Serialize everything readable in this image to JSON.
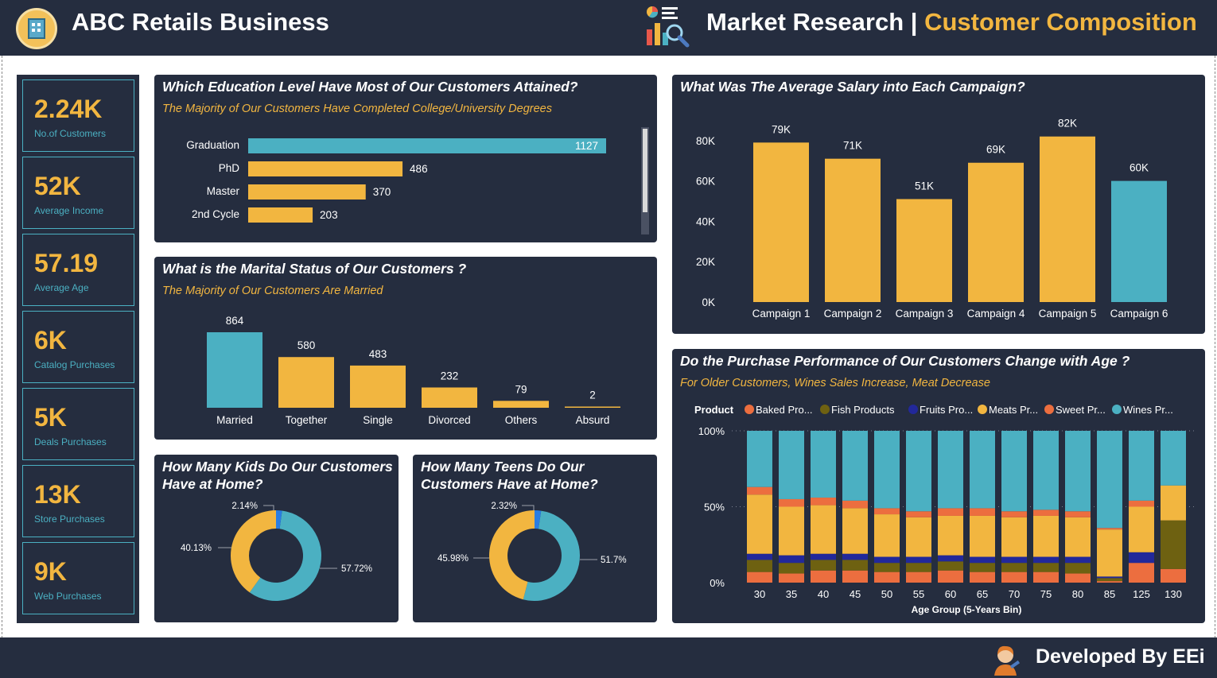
{
  "header": {
    "app_title": "ABC Retails Business",
    "page_title_main": "Market Research |",
    "page_title_accent": "Customer Composition",
    "colors": {
      "background": "#252d3f",
      "accent": "#f2b640",
      "teal": "#4bb0c2"
    }
  },
  "footer": {
    "developer": "Developed By EEi"
  },
  "kpis": [
    {
      "value": "2.24K",
      "label": "No.of Customers"
    },
    {
      "value": "52K",
      "label": "Average Income"
    },
    {
      "value": "57.19",
      "label": "Average Age"
    },
    {
      "value": "6K",
      "label": "Catalog Purchases"
    },
    {
      "value": "5K",
      "label": "Deals Purchases"
    },
    {
      "value": "13K",
      "label": "Store Purchases"
    },
    {
      "value": "9K",
      "label": "Web Purchases"
    }
  ],
  "education": {
    "title": "Which Education Level Have Most of Our Customers Attained?",
    "subtitle": "The Majority of Our Customers Have Completed College/University Degrees"
  },
  "marital": {
    "title": "What is the Marital Status of Our Customers ?",
    "subtitle": "The Majority of Our Customers Are Married"
  },
  "kids": {
    "title_line1": "How Many Kids Do Our Customers",
    "title_line2": "Have at Home?"
  },
  "teens": {
    "title_line1": "How Many Teens Do Our",
    "title_line2": "Customers Have at Home?"
  },
  "salary": {
    "title": "What Was The Average Salary into Each Campaign?"
  },
  "age": {
    "title": "Do the Purchase Performance of Our Customers Change with Age ?",
    "subtitle": "For Older Customers, Wines Sales Increase, Meat Decrease"
  },
  "chart_data": [
    {
      "id": "education",
      "type": "bar",
      "orientation": "horizontal",
      "categories": [
        "Graduation",
        "PhD",
        "Master",
        "2nd Cycle"
      ],
      "values": [
        1127,
        486,
        370,
        203
      ],
      "data_labels": [
        "1127",
        "486",
        "370",
        "203"
      ],
      "highlight_index": 0,
      "colors": {
        "bar": "#f2b640",
        "highlight": "#4bb0c2"
      }
    },
    {
      "id": "marital",
      "type": "bar",
      "categories": [
        "Married",
        "Together",
        "Single",
        "Divorced",
        "Others",
        "Absurd"
      ],
      "values": [
        864,
        580,
        483,
        232,
        79,
        2
      ],
      "data_labels": [
        "864",
        "580",
        "483",
        "232",
        "79",
        "2"
      ],
      "highlight_index": 0,
      "colors": {
        "bar": "#f2b640",
        "highlight": "#4bb0c2"
      }
    },
    {
      "id": "kids",
      "type": "pie",
      "donut": true,
      "values": [
        57.72,
        40.13,
        2.14
      ],
      "data_labels": [
        "57.72%",
        "40.13%",
        "2.14%"
      ],
      "colors": [
        "#4bb0c2",
        "#f2b640",
        "#2a7de1"
      ]
    },
    {
      "id": "teens",
      "type": "pie",
      "donut": true,
      "values": [
        51.7,
        45.98,
        2.32
      ],
      "data_labels": [
        "51.7%",
        "45.98%",
        "2.32%"
      ],
      "colors": [
        "#4bb0c2",
        "#f2b640",
        "#2a7de1"
      ]
    },
    {
      "id": "salary",
      "type": "bar",
      "categories": [
        "Campaign 1",
        "Campaign 2",
        "Campaign 3",
        "Campaign 4",
        "Campaign 5",
        "Campaign 6"
      ],
      "values": [
        79,
        71,
        51,
        69,
        82,
        60
      ],
      "data_labels": [
        "79K",
        "71K",
        "51K",
        "69K",
        "82K",
        "60K"
      ],
      "y_ticks": [
        "0K",
        "20K",
        "40K",
        "60K",
        "80K"
      ],
      "ylim": [
        0,
        80
      ],
      "highlight_index": 5,
      "colors": {
        "bar": "#f2b640",
        "highlight": "#4bb0c2"
      }
    },
    {
      "id": "age",
      "type": "bar",
      "stacked": true,
      "percent": true,
      "xlabel": "Age Group (5-Years Bin)",
      "legend_title": "Product",
      "legend_position": "top",
      "y_ticks": [
        "0%",
        "50%",
        "100%"
      ],
      "categories": [
        "30",
        "35",
        "40",
        "45",
        "50",
        "55",
        "60",
        "65",
        "70",
        "75",
        "80",
        "85",
        "125",
        "130"
      ],
      "series": [
        {
          "name": "Baked Pro...",
          "color": "#ec6e3f",
          "values": [
            7,
            6,
            8,
            8,
            7,
            7,
            8,
            7,
            7,
            7,
            6,
            1,
            13,
            9
          ]
        },
        {
          "name": "Fish Products",
          "color": "#6e6111",
          "values": [
            8,
            7,
            7,
            7,
            6,
            6,
            6,
            6,
            6,
            6,
            7,
            2,
            0,
            32
          ]
        },
        {
          "name": "Fruits Pro...",
          "color": "#22289a",
          "values": [
            4,
            5,
            4,
            4,
            4,
            4,
            4,
            4,
            4,
            4,
            4,
            1,
            7,
            0
          ]
        },
        {
          "name": "Meats Pr...",
          "color": "#f2b640",
          "values": [
            39,
            32,
            32,
            30,
            28,
            26,
            26,
            27,
            26,
            27,
            26,
            31,
            30,
            23
          ]
        },
        {
          "name": "Sweet Pr...",
          "color": "#ec6e3f",
          "values": [
            5,
            5,
            5,
            5,
            4,
            4,
            5,
            5,
            4,
            4,
            4,
            1,
            4,
            0
          ]
        },
        {
          "name": "Wines Pr...",
          "color": "#4bb0c2",
          "values": [
            37,
            45,
            44,
            46,
            51,
            53,
            51,
            51,
            53,
            52,
            53,
            64,
            46,
            36
          ]
        }
      ]
    }
  ]
}
